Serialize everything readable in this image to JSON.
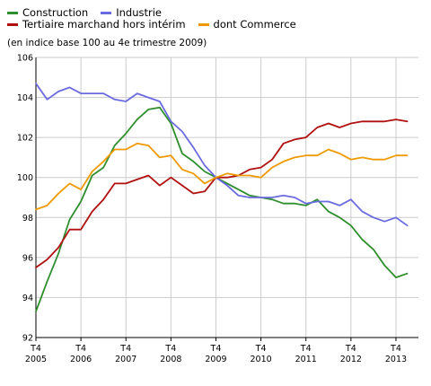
{
  "colors": {
    "construction": "#2f8f2f",
    "industrie": "#6b6be0",
    "tertiaire": "#b01010",
    "commerce": "#ee9a00",
    "grid": "#cccccc",
    "axis": "#000000"
  },
  "legend": {
    "construction": "Construction",
    "industrie": "Industrie",
    "tertiaire": "Tertiaire marchand hors intérim",
    "commerce": "dont Commerce"
  },
  "note": "(en indice base 100 au 4e trimestre 2009)",
  "chart_data": {
    "type": "line",
    "title": "",
    "ylabel": "",
    "xlabel": "",
    "ylim": [
      92,
      106
    ],
    "yticks": [
      92,
      94,
      96,
      98,
      100,
      102,
      104,
      106
    ],
    "grid": true,
    "legend_position": "top-left",
    "x_ticks": [
      {
        "line1": "T4",
        "line2": "2005",
        "index": 0
      },
      {
        "line1": "T4",
        "line2": "2006",
        "index": 4
      },
      {
        "line1": "T4",
        "line2": "2007",
        "index": 8
      },
      {
        "line1": "T4",
        "line2": "2008",
        "index": 12
      },
      {
        "line1": "T4",
        "line2": "2009",
        "index": 16
      },
      {
        "line1": "T4",
        "line2": "2010",
        "index": 20
      },
      {
        "line1": "T4",
        "line2": "2011",
        "index": 24
      },
      {
        "line1": "T4",
        "line2": "2012",
        "index": 28
      },
      {
        "line1": "T4",
        "line2": "2013",
        "index": 32
      }
    ],
    "x": [
      "T4 2005",
      "T1 2006",
      "T2 2006",
      "T3 2006",
      "T4 2006",
      "T1 2007",
      "T2 2007",
      "T3 2007",
      "T4 2007",
      "T1 2008",
      "T2 2008",
      "T3 2008",
      "T4 2008",
      "T1 2009",
      "T2 2009",
      "T3 2009",
      "T4 2009",
      "T1 2010",
      "T2 2010",
      "T3 2010",
      "T4 2010",
      "T1 2011",
      "T2 2011",
      "T3 2011",
      "T4 2011",
      "T1 2012",
      "T2 2012",
      "T3 2012",
      "T4 2012",
      "T1 2013",
      "T2 2013",
      "T3 2013",
      "T4 2013",
      "T1 2014"
    ],
    "series": [
      {
        "key": "construction",
        "name": "Construction",
        "values": [
          93.3,
          94.8,
          96.2,
          97.9,
          98.8,
          100.1,
          100.5,
          101.6,
          102.2,
          102.9,
          103.4,
          103.5,
          102.7,
          101.2,
          100.8,
          100.3,
          100.0,
          99.7,
          99.4,
          99.1,
          99.0,
          98.9,
          98.7,
          98.7,
          98.6,
          98.9,
          98.3,
          98.0,
          97.6,
          96.9,
          96.4,
          95.6,
          95.0,
          95.2
        ]
      },
      {
        "key": "industrie",
        "name": "Industrie",
        "values": [
          104.7,
          103.9,
          104.3,
          104.5,
          104.2,
          104.2,
          104.2,
          103.9,
          103.8,
          104.2,
          104.0,
          103.8,
          102.8,
          102.3,
          101.5,
          100.6,
          100.0,
          99.6,
          99.1,
          99.0,
          99.0,
          99.0,
          99.1,
          99.0,
          98.7,
          98.8,
          98.8,
          98.6,
          98.9,
          98.3,
          98.0,
          97.8,
          98.0,
          97.6
        ]
      },
      {
        "key": "tertiaire",
        "name": "Tertiaire marchand hors intérim",
        "values": [
          95.5,
          95.9,
          96.5,
          97.4,
          97.4,
          98.3,
          98.9,
          99.7,
          99.7,
          99.9,
          100.1,
          99.6,
          100.0,
          99.6,
          99.2,
          99.3,
          100.0,
          100.0,
          100.1,
          100.4,
          100.5,
          100.9,
          101.7,
          101.9,
          102.0,
          102.5,
          102.7,
          102.5,
          102.7,
          102.8,
          102.8,
          102.8,
          102.9,
          102.8
        ]
      },
      {
        "key": "commerce",
        "name": "dont Commerce",
        "values": [
          98.4,
          98.6,
          99.2,
          99.7,
          99.4,
          100.3,
          100.8,
          101.4,
          101.4,
          101.7,
          101.6,
          101.0,
          101.1,
          100.4,
          100.2,
          99.7,
          100.0,
          100.2,
          100.1,
          100.1,
          100.0,
          100.5,
          100.8,
          101.0,
          101.1,
          101.1,
          101.4,
          101.2,
          100.9,
          101.0,
          100.9,
          100.9,
          101.1,
          101.1
        ]
      }
    ]
  }
}
